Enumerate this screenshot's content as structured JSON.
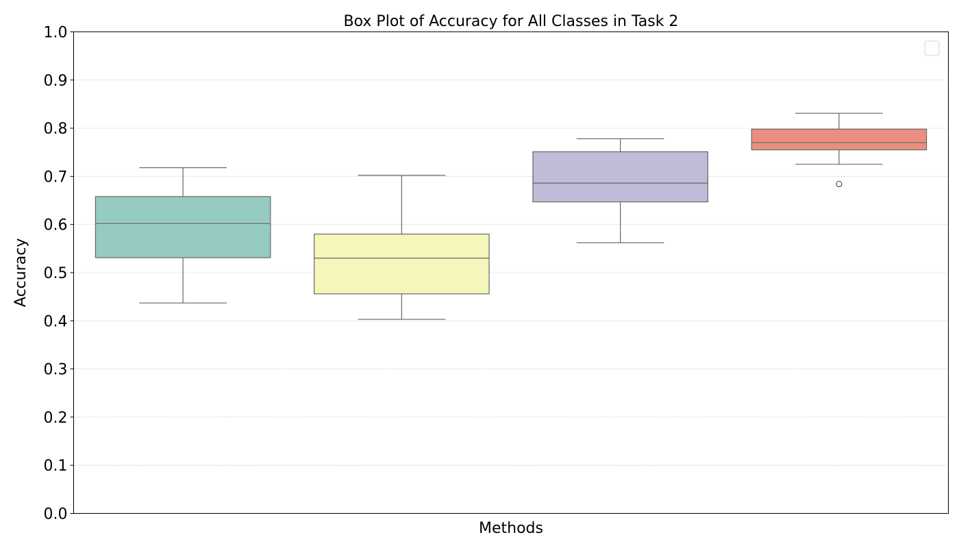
{
  "chart_data": {
    "type": "box",
    "title": "Box Plot of Accuracy for All Classes in Task 2",
    "xlabel": "Methods",
    "ylabel": "Accuracy",
    "ylim": [
      0.0,
      1.0
    ],
    "yticks": [
      "0.0",
      "0.1",
      "0.2",
      "0.3",
      "0.4",
      "0.5",
      "0.6",
      "0.7",
      "0.8",
      "0.9",
      "1.0"
    ],
    "grid": "horizontal dotted",
    "legend": {
      "location": "top-right",
      "entries": []
    },
    "series": [
      {
        "color": "#96cbc1",
        "whisker_low": 0.437,
        "q1": 0.531,
        "median": 0.602,
        "q3": 0.658,
        "whisker_high": 0.718,
        "outliers": []
      },
      {
        "color": "#f6f5bb",
        "whisker_low": 0.403,
        "q1": 0.456,
        "median": 0.53,
        "q3": 0.58,
        "whisker_high": 0.702,
        "outliers": []
      },
      {
        "color": "#c0bbd6",
        "whisker_low": 0.562,
        "q1": 0.647,
        "median": 0.686,
        "q3": 0.751,
        "whisker_high": 0.778,
        "outliers": []
      },
      {
        "color": "#ea8f80",
        "whisker_low": 0.725,
        "q1": 0.755,
        "median": 0.77,
        "q3": 0.798,
        "whisker_high": 0.831,
        "outliers": [
          0.684
        ]
      }
    ]
  }
}
